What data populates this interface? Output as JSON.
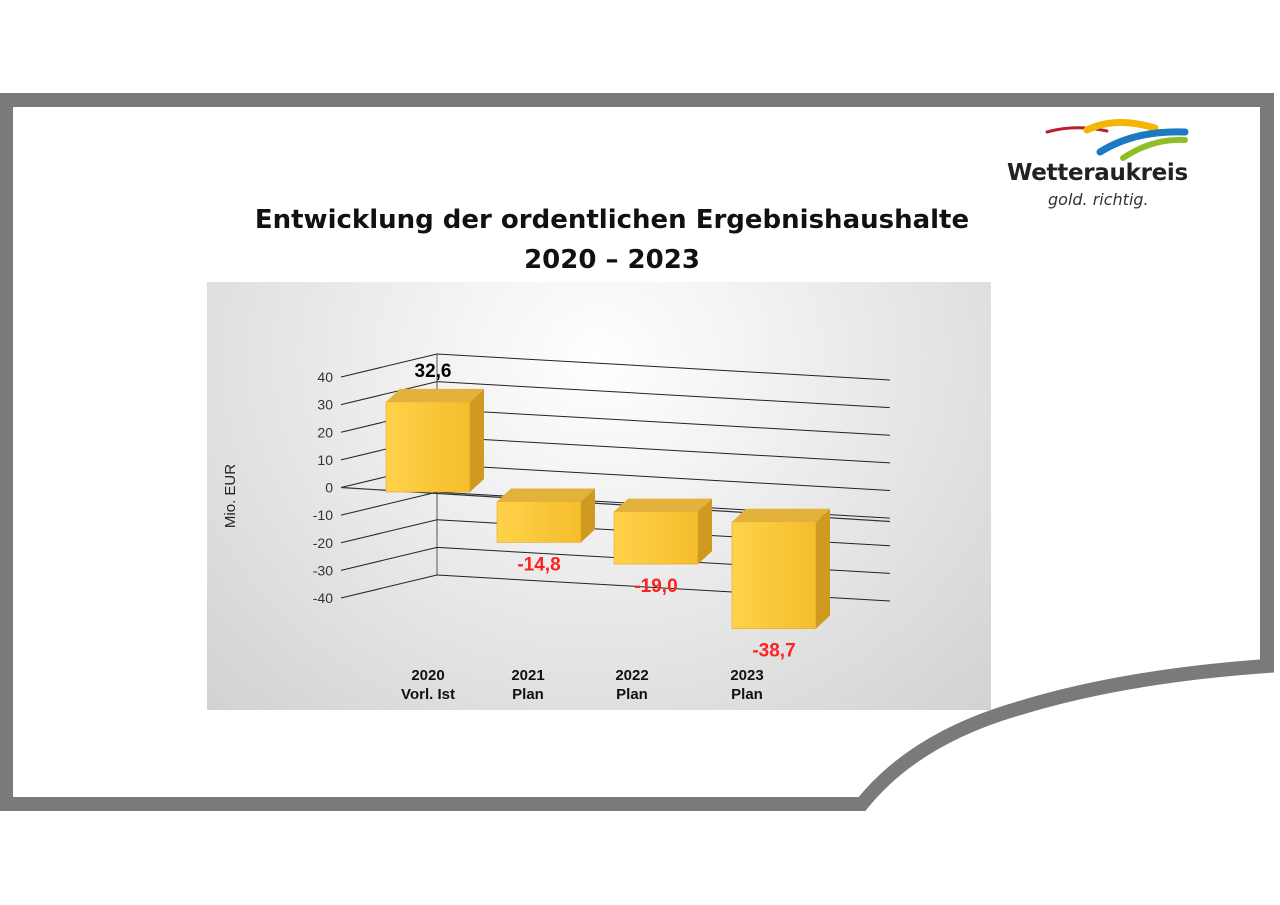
{
  "title": {
    "line1": "Entwicklung der ordentlichen Ergebnishaushalte",
    "line2": "2020 – 2023"
  },
  "logo": {
    "name": "Wetteraukreis",
    "tagline": "gold. richtig."
  },
  "colors": {
    "frame": "#7a7a7a",
    "bar": "#ffc83d",
    "negative_label": "#ff2020",
    "positive_label": "#000000"
  },
  "chart_data": {
    "type": "bar",
    "style": "3d",
    "ylabel": "Mio. EUR",
    "ylim": [
      -40,
      40
    ],
    "yticks": [
      "40",
      "30",
      "20",
      "10",
      "0",
      "-10",
      "-20",
      "-30",
      "-40"
    ],
    "categories": [
      [
        "2020",
        "Vorl. Ist"
      ],
      [
        "2021",
        "Plan"
      ],
      [
        "2022",
        "Plan"
      ],
      [
        "2023",
        "Plan"
      ]
    ],
    "values": [
      32.6,
      -14.8,
      -19.0,
      -38.7
    ],
    "data_labels": [
      "32,6",
      "-14,8",
      "-19,0",
      "-38,7"
    ],
    "grid": true,
    "legend": "none"
  }
}
